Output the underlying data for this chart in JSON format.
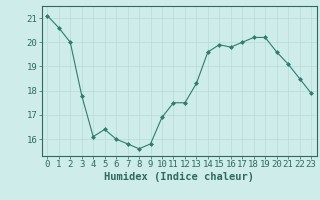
{
  "x": [
    0,
    1,
    2,
    3,
    4,
    5,
    6,
    7,
    8,
    9,
    10,
    11,
    12,
    13,
    14,
    15,
    16,
    17,
    18,
    19,
    20,
    21,
    22,
    23
  ],
  "y": [
    21.1,
    20.6,
    20.0,
    17.8,
    16.1,
    16.4,
    16.0,
    15.8,
    15.6,
    15.8,
    16.9,
    17.5,
    17.5,
    18.3,
    19.6,
    19.9,
    19.8,
    20.0,
    20.2,
    20.2,
    19.6,
    19.1,
    18.5,
    17.9
  ],
  "line_color": "#2e7d6e",
  "marker": "D",
  "marker_size": 2,
  "bg_color": "#ceecea",
  "grid_color": "#b8dbd8",
  "tick_color": "#2e6b5e",
  "spine_color": "#2e6b5e",
  "xlabel": "Humidex (Indice chaleur)",
  "xlim": [
    -0.5,
    23.5
  ],
  "ylim": [
    15.3,
    21.5
  ],
  "yticks": [
    16,
    17,
    18,
    19,
    20,
    21
  ],
  "xticks": [
    0,
    1,
    2,
    3,
    4,
    5,
    6,
    7,
    8,
    9,
    10,
    11,
    12,
    13,
    14,
    15,
    16,
    17,
    18,
    19,
    20,
    21,
    22,
    23
  ],
  "tick_font_size": 6.5,
  "label_font_size": 7.5
}
